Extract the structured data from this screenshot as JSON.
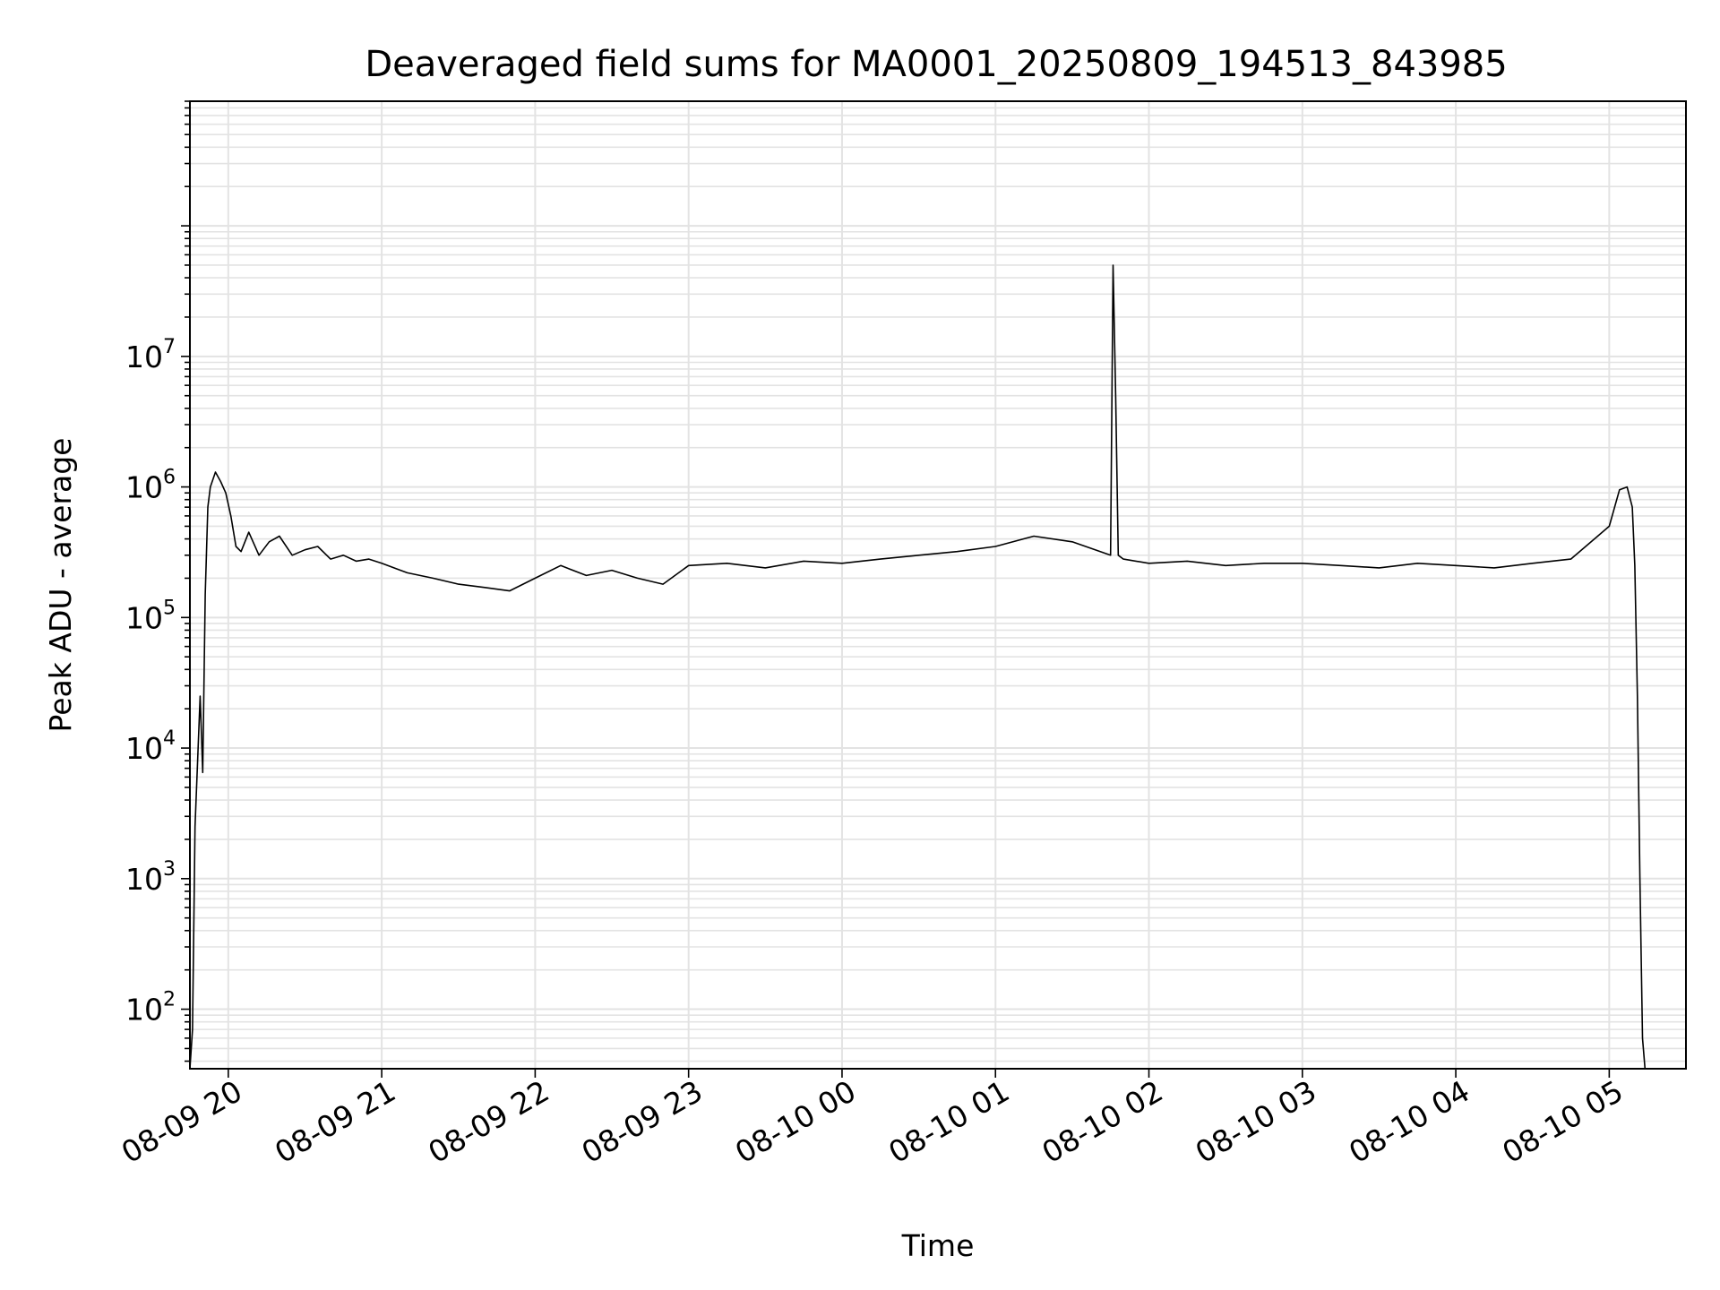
{
  "chart_data": {
    "type": "line",
    "title": "Deaveraged field sums for MA0001_20250809_194513_843985",
    "xlabel": "Time",
    "ylabel": "Peak ADU - average",
    "yscale": "log",
    "ylim": [
      35,
      900000000
    ],
    "xlim": [
      "2025-08-09 19:45",
      "2025-08-10 05:30"
    ],
    "grid": true,
    "line_color": "#000000",
    "grid_color": "#e3e3e3",
    "x_ticks": [
      "08-09 20",
      "08-09 21",
      "08-09 22",
      "08-09 23",
      "08-10 00",
      "08-10 01",
      "08-10 02",
      "08-10 03",
      "08-10 04",
      "08-10 05"
    ],
    "y_ticks": [
      {
        "base": "10",
        "exp": "2"
      },
      {
        "base": "10",
        "exp": "3"
      },
      {
        "base": "10",
        "exp": "4"
      },
      {
        "base": "10",
        "exp": "5"
      },
      {
        "base": "10",
        "exp": "6"
      },
      {
        "base": "10",
        "exp": "7"
      }
    ],
    "series": [
      {
        "x": [
          "2025-08-09 19:45",
          "2025-08-09 19:46",
          "2025-08-09 19:47",
          "2025-08-09 19:48",
          "2025-08-09 19:49",
          "2025-08-09 19:50",
          "2025-08-09 19:51",
          "2025-08-09 19:52",
          "2025-08-09 19:53",
          "2025-08-09 19:55",
          "2025-08-09 19:57",
          "2025-08-09 19:59",
          "2025-08-09 20:01",
          "2025-08-09 20:03",
          "2025-08-09 20:05",
          "2025-08-09 20:08",
          "2025-08-09 20:12",
          "2025-08-09 20:16",
          "2025-08-09 20:20",
          "2025-08-09 20:25",
          "2025-08-09 20:30",
          "2025-08-09 20:35",
          "2025-08-09 20:40",
          "2025-08-09 20:45",
          "2025-08-09 20:50",
          "2025-08-09 20:55",
          "2025-08-09 21:00",
          "2025-08-09 21:10",
          "2025-08-09 21:20",
          "2025-08-09 21:30",
          "2025-08-09 21:40",
          "2025-08-09 21:50",
          "2025-08-09 22:00",
          "2025-08-09 22:10",
          "2025-08-09 22:20",
          "2025-08-09 22:30",
          "2025-08-09 22:40",
          "2025-08-09 22:50",
          "2025-08-09 23:00",
          "2025-08-09 23:15",
          "2025-08-09 23:30",
          "2025-08-09 23:45",
          "2025-08-10 00:00",
          "2025-08-10 00:15",
          "2025-08-10 00:30",
          "2025-08-10 00:45",
          "2025-08-10 01:00",
          "2025-08-10 01:15",
          "2025-08-10 01:30",
          "2025-08-10 01:45",
          "2025-08-10 01:46",
          "2025-08-10 01:47",
          "2025-08-10 01:48",
          "2025-08-10 01:50",
          "2025-08-10 02:00",
          "2025-08-10 02:15",
          "2025-08-10 02:30",
          "2025-08-10 02:45",
          "2025-08-10 03:00",
          "2025-08-10 03:15",
          "2025-08-10 03:30",
          "2025-08-10 03:45",
          "2025-08-10 04:00",
          "2025-08-10 04:15",
          "2025-08-10 04:30",
          "2025-08-10 04:45",
          "2025-08-10 05:00",
          "2025-08-10 05:04",
          "2025-08-10 05:07",
          "2025-08-10 05:09",
          "2025-08-10 05:10",
          "2025-08-10 05:11",
          "2025-08-10 05:12",
          "2025-08-10 05:13",
          "2025-08-10 05:14"
        ],
        "y": [
          35,
          70,
          2500,
          8000,
          25000,
          6500,
          150000,
          700000,
          1000000,
          1300000,
          1100000,
          900000,
          600000,
          350000,
          320000,
          450000,
          300000,
          380000,
          420000,
          300000,
          330000,
          350000,
          280000,
          300000,
          270000,
          280000,
          260000,
          220000,
          200000,
          180000,
          170000,
          160000,
          200000,
          250000,
          210000,
          230000,
          200000,
          180000,
          250000,
          260000,
          240000,
          270000,
          260000,
          280000,
          300000,
          320000,
          350000,
          420000,
          380000,
          300000,
          50000000,
          5000000,
          300000,
          280000,
          260000,
          270000,
          250000,
          260000,
          260000,
          250000,
          240000,
          260000,
          250000,
          240000,
          260000,
          280000,
          500000,
          950000,
          1000000,
          700000,
          250000,
          25000,
          1000,
          60,
          30
        ]
      }
    ]
  }
}
